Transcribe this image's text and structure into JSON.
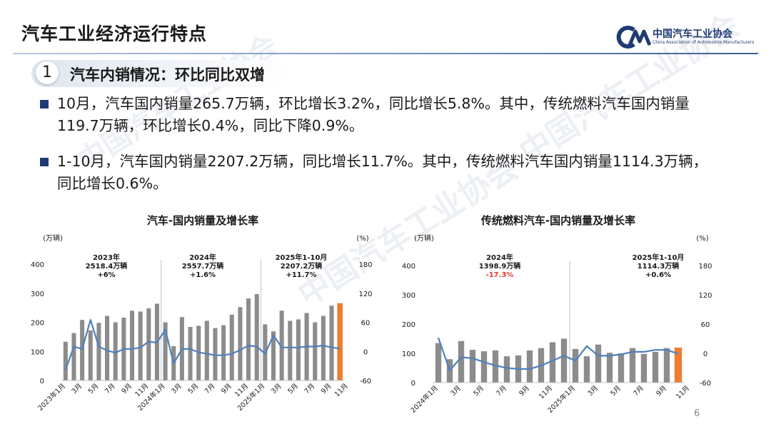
{
  "header": {
    "title": "汽车工业经济运行特点",
    "logo_cn": "中国汽车工业协会",
    "logo_en": "China Association of Automobile Manufacturers"
  },
  "section": {
    "number": "1",
    "title": "汽车内销情况：环比同比双增"
  },
  "bullets": [
    {
      "line1": "10月，汽车国内销量265.7万辆，环比增长3.2%，同比增长5.8%。其中，传统燃料汽车国内销量",
      "line2": "119.7万辆，环比增长0.4%，同比下降0.9%。"
    },
    {
      "line1": "1-10月，汽车国内销量2207.2万辆，同比增长11.7%。其中，传统燃料汽车国内销量1114.3万辆，",
      "line2": "同比增长0.6%。"
    }
  ],
  "page_number": "6",
  "colors": {
    "bar": "#8c8c8c",
    "bar_highlight": "#ed7d31",
    "line": "#4f81bd",
    "red_text": "#e03c31",
    "brand_blue": "#1f3b73"
  },
  "chart_data": [
    {
      "type": "bar",
      "title": "汽车-国内销量及增长率",
      "y_left_unit": "(万辆)",
      "y_right_unit": "(%)",
      "ylim": [
        0,
        400
      ],
      "yticks": [
        "0",
        "100",
        "200",
        "300",
        "400"
      ],
      "y2lim": [
        -60,
        180
      ],
      "y2ticks": [
        "-60",
        "0",
        "60",
        "120",
        "180"
      ],
      "xticks": [
        "2023年1月",
        "3月",
        "5月",
        "7月",
        "9月",
        "11月",
        "2024年1月",
        "3月",
        "5月",
        "7月",
        "9月",
        "11月",
        "2025年1月",
        "3月",
        "5月",
        "7月",
        "9月",
        "11月"
      ],
      "series": [
        {
          "name": "国内销量",
          "values": [
            133,
            163,
            208,
            172,
            198,
            222,
            200,
            216,
            240,
            237,
            248,
            264,
            200,
            118,
            218,
            184,
            188,
            205,
            180,
            190,
            226,
            252,
            282,
            297,
            193,
            169,
            240,
            205,
            210,
            232,
            200,
            222,
            257,
            265.7
          ]
        },
        {
          "name": "增长率",
          "values": [
            -38,
            10,
            5,
            65,
            10,
            2,
            -3,
            5,
            5,
            8,
            20,
            18,
            45,
            -25,
            5,
            5,
            -2,
            -5,
            -8,
            -8,
            -5,
            3,
            12,
            10,
            -5,
            33,
            8,
            8,
            8,
            10,
            10,
            12,
            8,
            5.8
          ]
        }
      ],
      "annotations": [
        {
          "title": "2023年",
          "value": "2518.4万辆",
          "growth": "+6%"
        },
        {
          "title": "2024年",
          "value": "2557.7万辆",
          "growth": "+1.6%"
        },
        {
          "title": "2025年1-10月",
          "value": "2207.2万辆",
          "growth": "+11.7%"
        }
      ]
    },
    {
      "type": "bar",
      "title": "传统燃料汽车-国内销量及增长率",
      "y_left_unit": "(万辆)",
      "y_right_unit": "(%)",
      "ylim": [
        0,
        400
      ],
      "yticks": [
        "0",
        "100",
        "200",
        "300",
        "400"
      ],
      "y2lim": [
        -60,
        180
      ],
      "y2ticks": [
        "-60",
        "0",
        "60",
        "120",
        "180"
      ],
      "xticks": [
        "2024年1月",
        "3月",
        "5月",
        "7月",
        "9月",
        "11月",
        "2025年1月",
        "3月",
        "5月",
        "7月",
        "9月",
        "11月"
      ],
      "series": [
        {
          "name": "国内销量",
          "values": [
            135,
            80,
            142,
            112,
            107,
            110,
            90,
            93,
            110,
            118,
            138,
            150,
            115,
            90,
            130,
            102,
            100,
            118,
            98,
            105,
            118,
            119.7
          ]
        },
        {
          "name": "增长率",
          "values": [
            32,
            -35,
            -8,
            -10,
            -18,
            -25,
            -30,
            -32,
            -32,
            -25,
            -15,
            -5,
            -15,
            15,
            -5,
            -5,
            -2,
            3,
            3,
            7,
            7,
            -0.9
          ]
        }
      ],
      "annotations": [
        {
          "title": "2024年",
          "value": "1398.9万辆",
          "growth": "-17.3%"
        },
        {
          "title": "2025年1-10月",
          "value": "1114.3万辆",
          "growth": "+0.6%"
        }
      ]
    }
  ]
}
